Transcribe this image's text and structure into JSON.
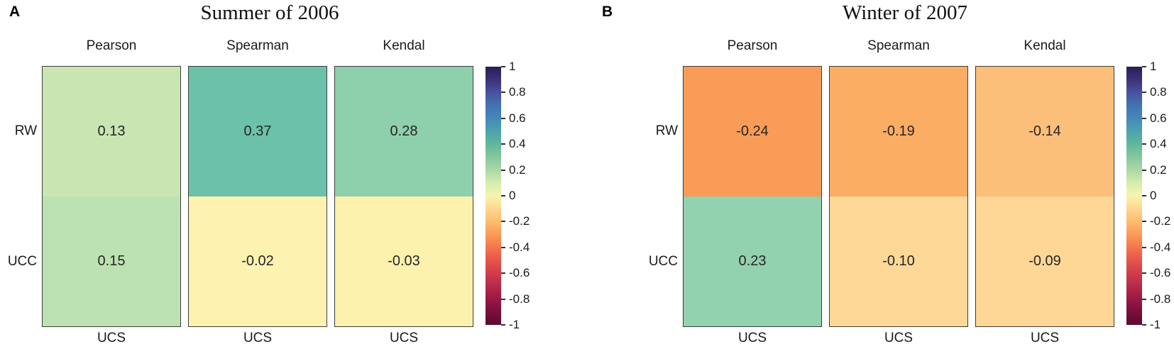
{
  "colorbar": {
    "ticks": [
      "1",
      "0.8",
      "0.6",
      "0.4",
      "0.2",
      "0",
      "-0.2",
      "-0.4",
      "-0.6",
      "-0.8",
      "-1"
    ],
    "range": [
      -1,
      1
    ],
    "stops": [
      "#2a1e54",
      "#3c3179",
      "#48519e",
      "#4273b2",
      "#4487bb",
      "#4da3ad",
      "#5fb79b",
      "#86c79e",
      "#aad8a5",
      "#d6edae",
      "#f9f3ad",
      "#fdd88e",
      "#fcbc6f",
      "#fa9b58",
      "#f3764d",
      "#e65549",
      "#d23c4d",
      "#b52a4a",
      "#9a1843",
      "#7a0e3b",
      "#5a0b33"
    ]
  },
  "chart_data": [
    {
      "type": "heatmap",
      "panel_label": "A",
      "title": "Summer of 2006",
      "columns": [
        "Pearson",
        "Spearman",
        "Kendal"
      ],
      "rows": [
        "RW",
        "UCC"
      ],
      "x_tick_label": "UCS",
      "values": [
        [
          0.13,
          0.37,
          0.28
        ],
        [
          0.15,
          -0.02,
          -0.03
        ]
      ],
      "value_labels": [
        [
          "0.13",
          "0.37",
          "0.28"
        ],
        [
          "0.15",
          "-0.02",
          "-0.03"
        ]
      ],
      "cell_colors": [
        [
          "#c9e6b2",
          "#6cc2a9",
          "#8fd0ac"
        ],
        [
          "#bde2b1",
          "#fdf2af",
          "#fcf1ad"
        ]
      ],
      "colorbar_range": [
        -1,
        1
      ],
      "legend_position": "right"
    },
    {
      "type": "heatmap",
      "panel_label": "B",
      "title": "Winter of 2007",
      "columns": [
        "Pearson",
        "Spearman",
        "Kendal"
      ],
      "rows": [
        "RW",
        "UCC"
      ],
      "x_tick_label": "UCS",
      "values": [
        [
          -0.24,
          -0.19,
          -0.14
        ],
        [
          0.23,
          -0.1,
          -0.09
        ]
      ],
      "value_labels": [
        [
          "-0.24",
          "-0.19",
          "-0.14"
        ],
        [
          "0.23",
          "-0.10",
          "-0.09"
        ]
      ],
      "cell_colors": [
        [
          "#f99c58",
          "#fbad64",
          "#fcbf79"
        ],
        [
          "#92d2ae",
          "#fed896",
          "#fed797"
        ]
      ],
      "colorbar_range": [
        -1,
        1
      ],
      "legend_position": "right"
    }
  ]
}
